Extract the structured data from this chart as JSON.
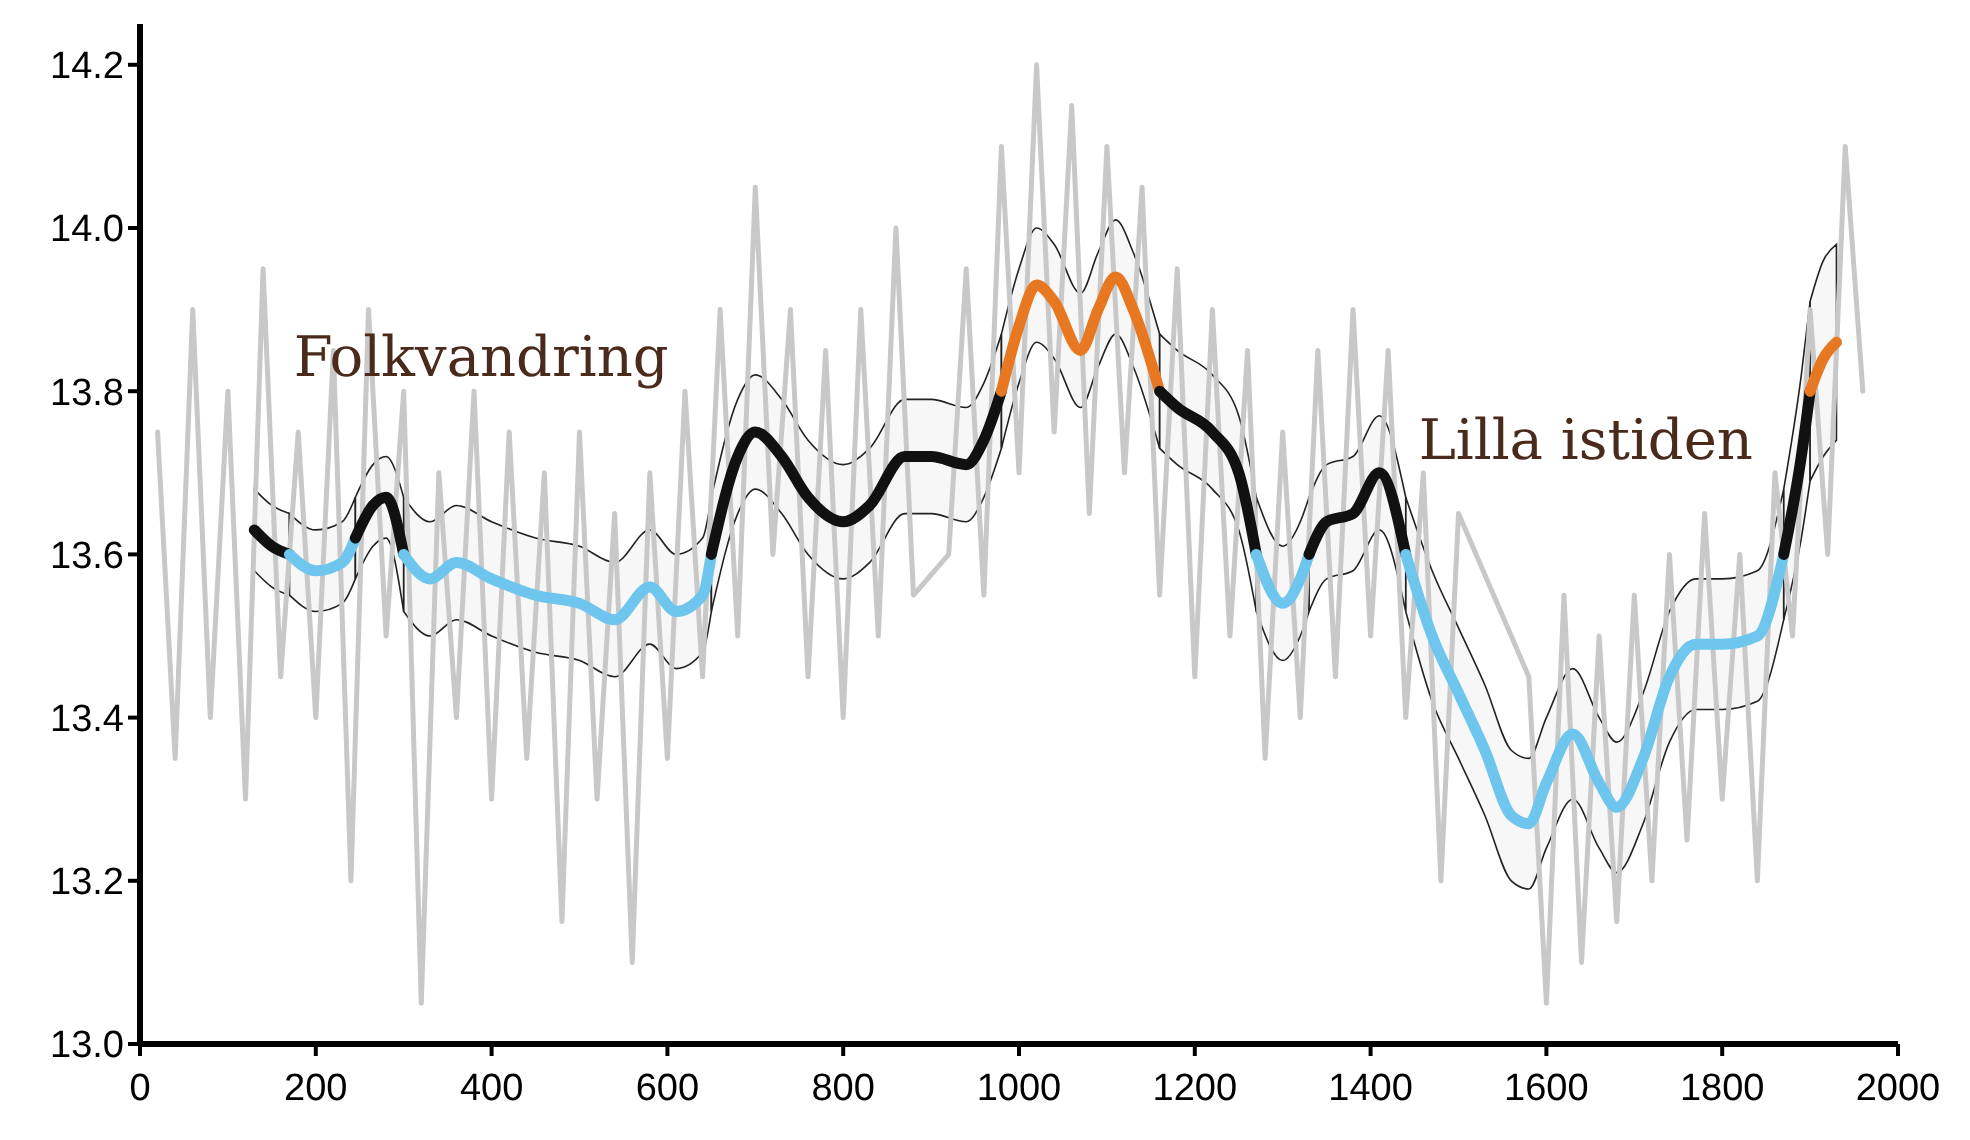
{
  "chart_data": {
    "type": "line",
    "xlim": [
      0,
      2000
    ],
    "xticks": [
      0,
      200,
      400,
      600,
      800,
      1000,
      1200,
      1400,
      1600,
      1800,
      2000
    ],
    "ylim": [
      13.0,
      14.25
    ],
    "yticks": [
      {
        "value": 13.0,
        "label": "13.0"
      },
      {
        "value": 13.2,
        "label": "13.2"
      },
      {
        "value": 13.4,
        "label": "13.4"
      },
      {
        "value": 13.6,
        "label": "13.6"
      },
      {
        "value": 13.8,
        "label": "13.8"
      },
      {
        "value": 14.0,
        "label": "14.0"
      },
      {
        "value": 14.2,
        "label": "14.2"
      }
    ],
    "grid": false,
    "annotations": [
      "Folkvandring",
      "Lilla istiden"
    ],
    "series": [
      {
        "color": "#c8c8c8",
        "x": [
          20,
          40,
          60,
          80,
          100,
          120,
          140,
          160,
          180,
          200,
          220,
          240,
          260,
          280,
          300,
          320,
          340,
          360,
          380,
          400,
          420,
          440,
          460,
          480,
          500,
          520,
          540,
          560,
          580,
          600,
          620,
          640,
          660,
          680,
          700,
          720,
          740,
          760,
          780,
          800,
          820,
          840,
          860,
          880,
          920,
          940,
          960,
          980,
          1000,
          1020,
          1040,
          1060,
          1080,
          1100,
          1120,
          1140,
          1160,
          1180,
          1200,
          1220,
          1240,
          1260,
          1280,
          1300,
          1320,
          1340,
          1360,
          1380,
          1400,
          1420,
          1440,
          1460,
          1480,
          1500,
          1540,
          1580,
          1600,
          1620,
          1640,
          1660,
          1680,
          1700,
          1720,
          1740,
          1760,
          1780,
          1800,
          1820,
          1840,
          1860,
          1880,
          1900,
          1920,
          1940,
          1960
        ],
        "values": [
          13.75,
          13.35,
          13.9,
          13.4,
          13.8,
          13.3,
          13.95,
          13.45,
          13.75,
          13.4,
          13.85,
          13.2,
          13.9,
          13.5,
          13.8,
          13.05,
          13.7,
          13.4,
          13.8,
          13.3,
          13.75,
          13.35,
          13.7,
          13.15,
          13.75,
          13.3,
          13.65,
          13.1,
          13.7,
          13.35,
          13.8,
          13.45,
          13.9,
          13.5,
          14.05,
          13.6,
          13.9,
          13.45,
          13.85,
          13.4,
          13.9,
          13.5,
          14.0,
          13.55,
          13.6,
          13.95,
          13.55,
          14.1,
          13.7,
          14.2,
          13.75,
          14.15,
          13.65,
          14.1,
          13.7,
          14.05,
          13.55,
          13.95,
          13.45,
          13.9,
          13.5,
          13.85,
          13.35,
          13.75,
          13.4,
          13.85,
          13.45,
          13.9,
          13.5,
          13.85,
          13.4,
          13.7,
          13.2,
          13.65,
          13.55,
          13.45,
          13.05,
          13.55,
          13.1,
          13.5,
          13.15,
          13.55,
          13.2,
          13.6,
          13.25,
          13.65,
          13.3,
          13.6,
          13.2,
          13.7,
          13.5,
          13.9,
          13.6,
          14.1,
          13.8
        ]
      },
      {
        "color": "#111111",
        "x": [
          130,
          150,
          170
        ],
        "values": [
          13.63,
          13.61,
          13.6
        ],
        "upper": [
          13.68,
          13.66,
          13.65
        ],
        "lower": [
          13.58,
          13.56,
          13.55
        ]
      },
      {
        "color": "#6ec6ee",
        "x": [
          170,
          200,
          230,
          245
        ],
        "values": [
          13.6,
          13.58,
          13.59,
          13.62
        ],
        "upper": [
          13.65,
          13.63,
          13.64,
          13.67
        ],
        "lower": [
          13.55,
          13.53,
          13.54,
          13.57
        ]
      },
      {
        "color": "#111111",
        "x": [
          245,
          265,
          280,
          300
        ],
        "values": [
          13.62,
          13.66,
          13.67,
          13.6
        ],
        "upper": [
          13.67,
          13.71,
          13.72,
          13.67
        ],
        "lower": [
          13.57,
          13.61,
          13.62,
          13.53
        ]
      },
      {
        "color": "#6ec6ee",
        "x": [
          300,
          330,
          360,
          400,
          450,
          500,
          540,
          580,
          610,
          640,
          650
        ],
        "values": [
          13.6,
          13.57,
          13.59,
          13.57,
          13.55,
          13.54,
          13.52,
          13.56,
          13.53,
          13.55,
          13.6
        ],
        "upper": [
          13.67,
          13.64,
          13.66,
          13.64,
          13.62,
          13.61,
          13.59,
          13.63,
          13.6,
          13.62,
          13.67
        ],
        "lower": [
          13.53,
          13.5,
          13.52,
          13.5,
          13.48,
          13.47,
          13.45,
          13.49,
          13.46,
          13.48,
          13.53
        ]
      },
      {
        "color": "#111111",
        "x": [
          650,
          680,
          700,
          730,
          760,
          800,
          830,
          870,
          900,
          940,
          960,
          980
        ],
        "values": [
          13.6,
          13.72,
          13.75,
          13.72,
          13.67,
          13.64,
          13.66,
          13.72,
          13.72,
          13.71,
          13.74,
          13.8
        ],
        "upper": [
          13.67,
          13.79,
          13.82,
          13.79,
          13.74,
          13.71,
          13.73,
          13.79,
          13.79,
          13.78,
          13.81,
          13.87
        ],
        "lower": [
          13.53,
          13.65,
          13.68,
          13.65,
          13.6,
          13.57,
          13.59,
          13.65,
          13.65,
          13.64,
          13.67,
          13.73
        ]
      },
      {
        "color": "#e87722",
        "x": [
          980,
          1000,
          1020,
          1040,
          1070,
          1090,
          1110,
          1130,
          1160
        ],
        "values": [
          13.8,
          13.88,
          13.93,
          13.91,
          13.85,
          13.9,
          13.94,
          13.9,
          13.8
        ],
        "upper": [
          13.87,
          13.95,
          14.0,
          13.98,
          13.92,
          13.97,
          14.01,
          13.97,
          13.87
        ],
        "lower": [
          13.73,
          13.81,
          13.86,
          13.84,
          13.78,
          13.83,
          13.87,
          13.83,
          13.73
        ]
      },
      {
        "color": "#111111",
        "x": [
          1160,
          1180,
          1220,
          1250,
          1270
        ],
        "values": [
          13.8,
          13.78,
          13.75,
          13.7,
          13.6
        ],
        "upper": [
          13.87,
          13.85,
          13.82,
          13.77,
          13.67
        ],
        "lower": [
          13.73,
          13.71,
          13.68,
          13.63,
          13.53
        ]
      },
      {
        "color": "#6ec6ee",
        "x": [
          1270,
          1300,
          1320,
          1330
        ],
        "values": [
          13.6,
          13.54,
          13.57,
          13.6
        ],
        "upper": [
          13.67,
          13.61,
          13.64,
          13.67
        ],
        "lower": [
          13.53,
          13.47,
          13.5,
          13.53
        ]
      },
      {
        "color": "#111111",
        "x": [
          1330,
          1350,
          1380,
          1410,
          1440
        ],
        "values": [
          13.6,
          13.64,
          13.65,
          13.7,
          13.6
        ],
        "upper": [
          13.67,
          13.71,
          13.72,
          13.77,
          13.67
        ],
        "lower": [
          13.53,
          13.57,
          13.58,
          13.63,
          13.53
        ]
      },
      {
        "color": "#6ec6ee",
        "x": [
          1440,
          1470,
          1500,
          1530,
          1560,
          1580,
          1600,
          1630,
          1660,
          1680,
          1710,
          1740,
          1770,
          1800,
          1840,
          1870
        ],
        "values": [
          13.6,
          13.5,
          13.43,
          13.36,
          13.28,
          13.27,
          13.32,
          13.38,
          13.32,
          13.29,
          13.35,
          13.45,
          13.49,
          13.49,
          13.5,
          13.6
        ],
        "upper": [
          13.67,
          13.58,
          13.51,
          13.44,
          13.36,
          13.35,
          13.4,
          13.46,
          13.4,
          13.37,
          13.43,
          13.53,
          13.57,
          13.57,
          13.58,
          13.68
        ],
        "lower": [
          13.53,
          13.42,
          13.35,
          13.28,
          13.2,
          13.19,
          13.24,
          13.3,
          13.24,
          13.21,
          13.27,
          13.37,
          13.41,
          13.41,
          13.42,
          13.52
        ]
      },
      {
        "color": "#111111",
        "x": [
          1870,
          1890,
          1900
        ],
        "values": [
          13.6,
          13.72,
          13.8
        ],
        "upper": [
          13.68,
          13.82,
          13.91
        ],
        "lower": [
          13.52,
          13.62,
          13.69
        ]
      },
      {
        "color": "#e87722",
        "x": [
          1900,
          1915,
          1930
        ],
        "values": [
          13.8,
          13.84,
          13.86
        ],
        "upper": [
          13.91,
          13.96,
          13.98
        ],
        "lower": [
          13.69,
          13.72,
          13.74
        ]
      }
    ]
  }
}
